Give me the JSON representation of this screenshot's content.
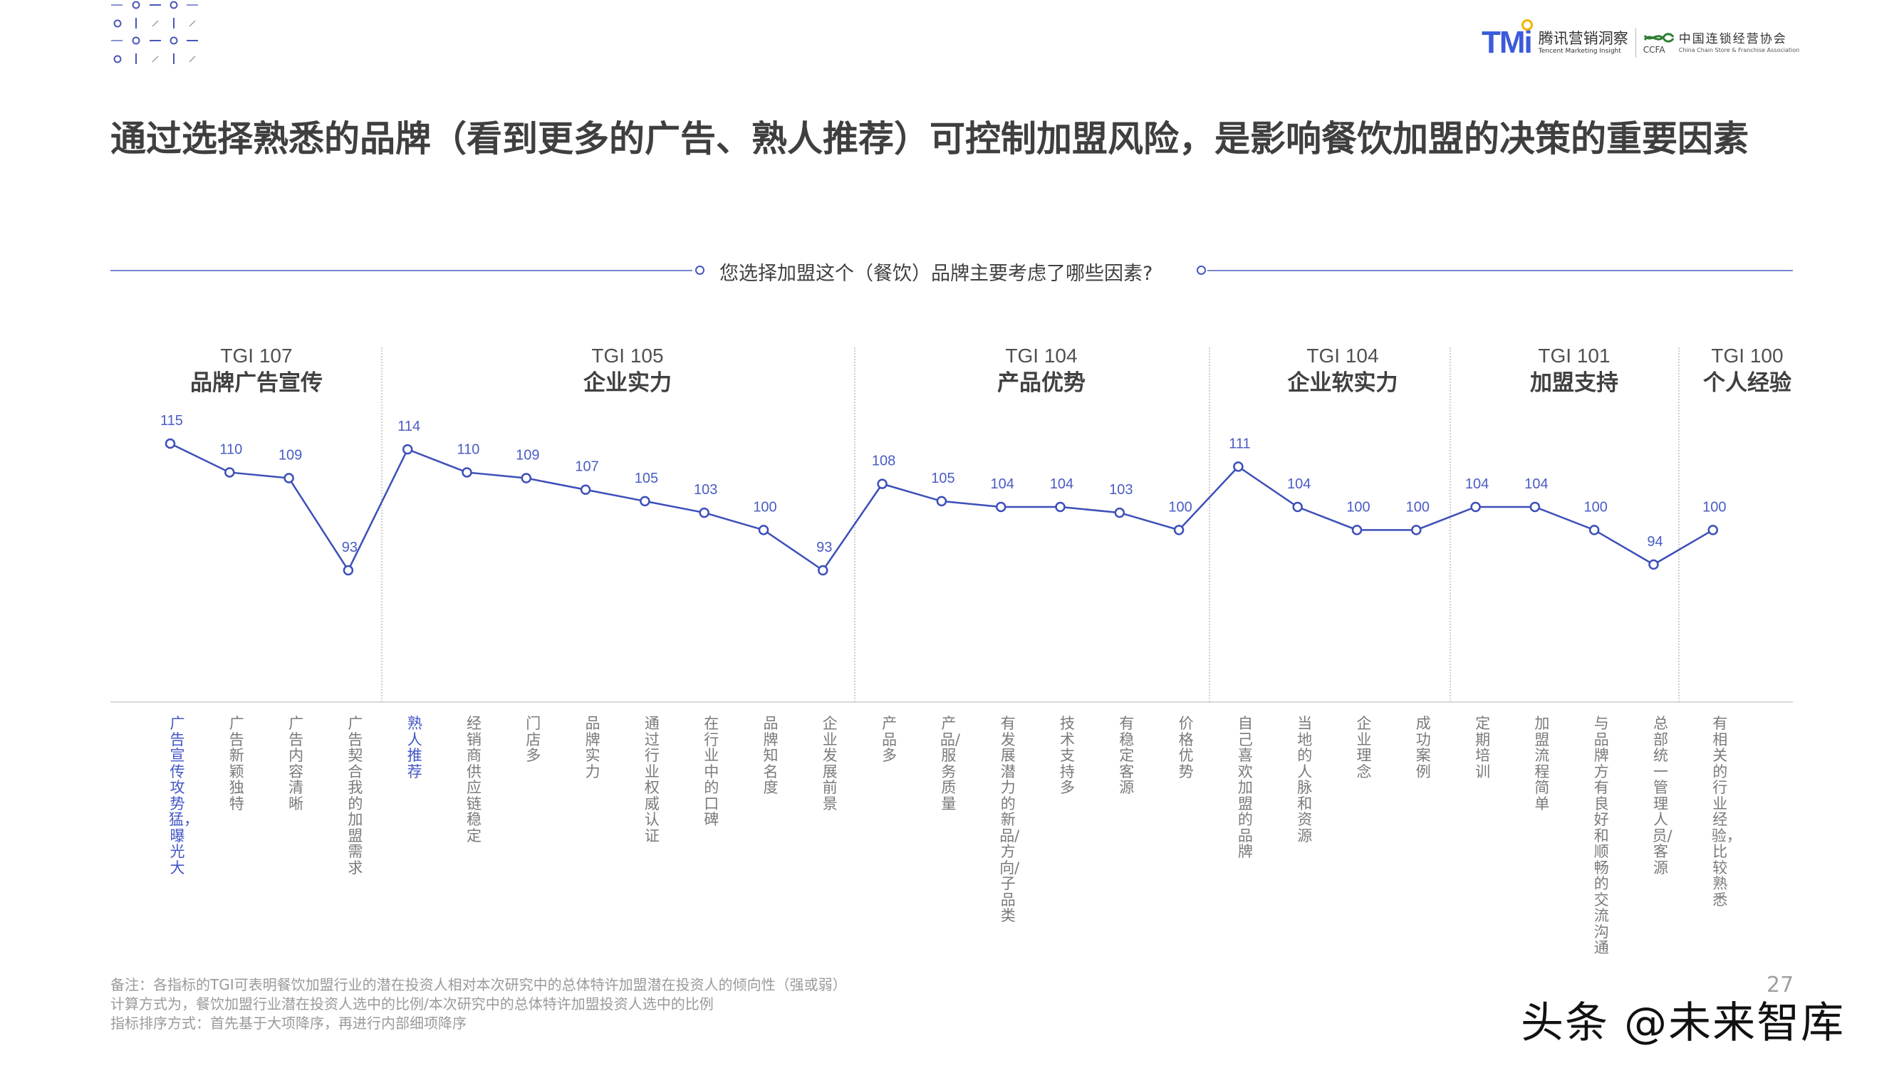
{
  "header": {
    "tmi_logo": "TMi",
    "tmi_cn": "腾讯营销洞察",
    "tmi_en": "Tencent Marketing Insight",
    "ccfa_logo": "CCFA",
    "ccfa_cn": "中国连锁经营协会",
    "ccfa_en": "China Chain Store & Franchise Association"
  },
  "title": "通过选择熟悉的品牌（看到更多的广告、熟人推荐）可控制加盟风险，是影响餐饮加盟的决策的重要因素",
  "question": "您选择加盟这个（餐饮）品牌主要考虑了哪些因素?",
  "colors": {
    "line": "#3d4fb8",
    "highlight_label": "#4256c6",
    "label": "#7a7a7a",
    "title": "#3f3f3f"
  },
  "groups": [
    {
      "tgi": "TGI 107",
      "name": "品牌广告宣传"
    },
    {
      "tgi": "TGI 105",
      "name": "企业实力"
    },
    {
      "tgi": "TGI 104",
      "name": "产品优势"
    },
    {
      "tgi": "TGI 104",
      "name": "企业软实力"
    },
    {
      "tgi": "TGI 101",
      "name": "加盟支持"
    },
    {
      "tgi": "TGI 100",
      "name": "个人经验"
    }
  ],
  "chart_data": {
    "type": "line",
    "title": "您选择加盟这个（餐饮）品牌主要考虑了哪些因素?",
    "xlabel": "",
    "ylabel": "TGI",
    "ylim": [
      90,
      118
    ],
    "grid": false,
    "legend": "none",
    "groups": [
      {
        "name": "品牌广告宣传",
        "tgi": 107,
        "start": 0,
        "count": 4
      },
      {
        "name": "企业实力",
        "tgi": 105,
        "start": 4,
        "count": 6
      },
      {
        "name": "产品优势",
        "tgi": 104,
        "start": 10,
        "count": 6
      },
      {
        "name": "企业软实力",
        "tgi": 104,
        "start": 16,
        "count": 4
      },
      {
        "name": "加盟支持",
        "tgi": 101,
        "start": 20,
        "count": 4
      },
      {
        "name": "个人经验",
        "tgi": 100,
        "start": 24,
        "count": 1
      }
    ],
    "categories": [
      "广告宣传攻势猛，曝光大",
      "广告新颖独特",
      "广告内容清晰",
      "广告契合我的加盟需求",
      "熟人推荐",
      "经销商供应链稳定",
      "门店多",
      "品牌实力",
      "通过行业权威认证",
      "在行业中的口碑",
      "品牌知名度",
      "企业发展前景",
      "产品多",
      "产品/服务质量",
      "有发展潜力的新品/方向/子品类",
      "技术支持多",
      "有稳定客源",
      "价格优势",
      "自己喜欢加盟的品牌",
      "当地的人脉和资源",
      "企业理念",
      "成功案例",
      "定期培训",
      "加盟流程简单",
      "与品牌方有良好和顺畅的交流沟通",
      "总部统一管理人员/客源",
      "有相关的行业经验，比较熟悉"
    ],
    "highlighted": [
      0,
      4
    ],
    "values": [
      115,
      110,
      109,
      93,
      114,
      110,
      109,
      107,
      105,
      103,
      100,
      93,
      108,
      105,
      104,
      104,
      103,
      100,
      111,
      104,
      100,
      100,
      104,
      104,
      100,
      94,
      100
    ]
  },
  "notes": [
    "备注：各指标的TGI可表明餐饮加盟行业的潜在投资人相对本次研究中的总体特许加盟潜在投资人的倾向性（强或弱）",
    "计算方式为，餐饮加盟行业潜在投资人选中的比例/本次研究中的总体特许加盟投资人选中的比例",
    "指标排序方式：首先基于大项降序，再进行内部细项降序"
  ],
  "page_number": "27",
  "watermark": "头条 @未来智库"
}
